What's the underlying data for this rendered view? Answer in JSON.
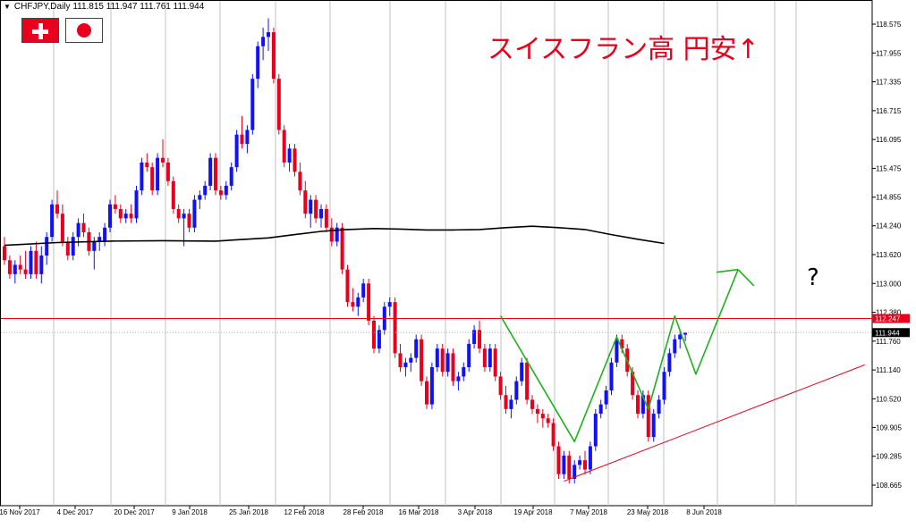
{
  "header": {
    "arrow": "▼",
    "symbol": "CHFJPY,Daily",
    "ohlc": "111.815 111.947 111.761 111.944"
  },
  "flags": [
    {
      "name": "Switzerland",
      "icon": "swiss-flag-icon"
    },
    {
      "name": "Japan",
      "icon": "japan-flag-icon"
    }
  ],
  "annotation_title": "スイスフラン高 円安↑",
  "annotation_question": "?",
  "colors": {
    "bull": "#1010ff",
    "bear": "#e8001c",
    "ma": "#000000",
    "pattern": "#20b020",
    "level": "#e8001c",
    "grid": "#c0c0c0"
  },
  "chart_data": {
    "type": "candlestick",
    "symbol": "CHFJPY",
    "timeframe": "Daily",
    "y_ticks": [
      "118.575",
      "117.955",
      "117.335",
      "116.715",
      "116.095",
      "115.475",
      "114.855",
      "114.240",
      "113.620",
      "113.000",
      "112.380",
      "111.760",
      "111.140",
      "110.520",
      "109.905",
      "109.285",
      "108.665"
    ],
    "x_ticks": [
      "16 Nov 2017",
      "4 Dec 2017",
      "20 Dec 2017",
      "9 Jan 2018",
      "25 Jan 2018",
      "12 Feb 2018",
      "28 Feb 2018",
      "16 Mar 2018",
      "3 Apr 2018",
      "19 Apr 2018",
      "7 May 2018",
      "23 May 2018",
      "8 Jun 2018"
    ],
    "ylim": [
      108.4,
      118.9
    ],
    "horizontal_line": {
      "value": 112.247,
      "label": "112.247"
    },
    "current_price": {
      "value": 111.944,
      "label": "111.944"
    },
    "moving_average": [
      [
        0,
        113.82
      ],
      [
        10,
        113.88
      ],
      [
        20,
        113.91
      ],
      [
        30,
        113.92
      ],
      [
        40,
        113.91
      ],
      [
        50,
        113.98
      ],
      [
        55,
        114.05
      ],
      [
        60,
        114.12
      ],
      [
        65,
        114.16
      ],
      [
        70,
        114.18
      ],
      [
        75,
        114.17
      ],
      [
        80,
        114.15
      ],
      [
        85,
        114.15
      ],
      [
        90,
        114.16
      ],
      [
        95,
        114.2
      ],
      [
        100,
        114.23
      ],
      [
        105,
        114.2
      ],
      [
        110,
        114.16
      ],
      [
        115,
        114.05
      ],
      [
        120,
        113.95
      ],
      [
        125,
        113.86
      ]
    ],
    "pattern_line": [
      [
        94,
        112.3
      ],
      [
        108,
        109.6
      ],
      [
        116,
        111.85
      ],
      [
        122,
        110.3
      ],
      [
        127,
        112.3
      ],
      [
        131,
        111.05
      ],
      [
        139,
        113.3
      ],
      [
        142,
        112.95
      ]
    ],
    "trend_line": [
      [
        106,
        108.75
      ],
      [
        163,
        111.25
      ]
    ],
    "candles": [
      [
        0,
        113.8,
        114.0,
        113.4,
        113.5
      ],
      [
        1,
        113.5,
        113.6,
        113.1,
        113.2
      ],
      [
        2,
        113.2,
        113.5,
        113.0,
        113.4
      ],
      [
        3,
        113.4,
        113.6,
        113.2,
        113.3
      ],
      [
        4,
        113.3,
        113.7,
        113.1,
        113.2
      ],
      [
        5,
        113.2,
        113.8,
        113.1,
        113.7
      ],
      [
        6,
        113.7,
        113.9,
        113.1,
        113.2
      ],
      [
        7,
        113.2,
        113.8,
        113.0,
        113.6
      ],
      [
        8,
        113.6,
        114.1,
        113.4,
        114.0
      ],
      [
        9,
        114.0,
        114.8,
        113.9,
        114.7
      ],
      [
        10,
        114.7,
        115.0,
        114.4,
        114.5
      ],
      [
        11,
        114.5,
        114.7,
        113.8,
        113.9
      ],
      [
        12,
        113.9,
        114.0,
        113.5,
        113.6
      ],
      [
        13,
        113.6,
        114.1,
        113.5,
        114.0
      ],
      [
        14,
        114.0,
        114.4,
        113.8,
        114.3
      ],
      [
        15,
        114.3,
        114.5,
        114.0,
        114.1
      ],
      [
        16,
        114.1,
        114.2,
        113.6,
        113.7
      ],
      [
        17,
        113.7,
        114.0,
        113.3,
        113.9
      ],
      [
        18,
        113.9,
        114.1,
        113.7,
        114.0
      ],
      [
        19,
        113.9,
        114.3,
        113.8,
        114.2
      ],
      [
        20,
        114.2,
        114.8,
        114.1,
        114.7
      ],
      [
        21,
        114.7,
        114.9,
        114.5,
        114.6
      ],
      [
        22,
        114.6,
        114.7,
        114.3,
        114.4
      ],
      [
        23,
        114.4,
        114.6,
        114.3,
        114.5
      ],
      [
        24,
        114.5,
        114.7,
        114.3,
        114.4
      ],
      [
        25,
        114.4,
        115.1,
        114.3,
        115.0
      ],
      [
        26,
        115.0,
        115.7,
        114.9,
        115.6
      ],
      [
        27,
        115.6,
        115.8,
        115.4,
        115.5
      ],
      [
        28,
        115.5,
        115.6,
        114.9,
        115.0
      ],
      [
        29,
        115.0,
        115.8,
        114.9,
        115.7
      ],
      [
        30,
        115.7,
        116.1,
        115.5,
        115.6
      ],
      [
        31,
        115.6,
        115.7,
        115.1,
        115.2
      ],
      [
        32,
        115.2,
        115.3,
        114.5,
        114.6
      ],
      [
        33,
        114.6,
        114.7,
        114.3,
        114.4
      ],
      [
        34,
        114.4,
        114.6,
        113.8,
        114.5
      ],
      [
        35,
        114.5,
        114.6,
        114.1,
        114.2
      ],
      [
        36,
        114.2,
        114.9,
        114.1,
        114.8
      ],
      [
        37,
        114.8,
        115.0,
        114.6,
        114.9
      ],
      [
        38,
        114.9,
        115.2,
        114.8,
        115.1
      ],
      [
        39,
        115.1,
        115.8,
        115.0,
        115.7
      ],
      [
        40,
        115.7,
        115.8,
        114.9,
        115.0
      ],
      [
        41,
        115.0,
        115.1,
        114.8,
        114.9
      ],
      [
        42,
        114.9,
        115.2,
        114.8,
        115.1
      ],
      [
        43,
        115.1,
        115.6,
        115.0,
        115.5
      ],
      [
        44,
        115.5,
        116.3,
        115.4,
        116.2
      ],
      [
        45,
        116.2,
        116.6,
        115.9,
        116.0
      ],
      [
        46,
        116.0,
        116.4,
        115.8,
        116.3
      ],
      [
        47,
        116.3,
        117.5,
        116.2,
        117.4
      ],
      [
        48,
        117.4,
        118.2,
        117.2,
        118.1
      ],
      [
        49,
        118.1,
        118.5,
        117.8,
        118.3
      ],
      [
        50,
        118.3,
        118.7,
        118.0,
        118.4
      ],
      [
        51,
        118.4,
        118.5,
        117.3,
        117.4
      ],
      [
        52,
        117.4,
        117.5,
        116.2,
        116.3
      ],
      [
        53,
        116.3,
        116.4,
        115.5,
        115.6
      ],
      [
        54,
        115.6,
        116.0,
        115.4,
        115.9
      ],
      [
        55,
        115.9,
        116.0,
        115.3,
        115.4
      ],
      [
        56,
        115.4,
        115.6,
        114.9,
        115.0
      ],
      [
        57,
        115.0,
        115.2,
        114.4,
        114.5
      ],
      [
        58,
        114.5,
        114.9,
        114.2,
        114.8
      ],
      [
        59,
        114.8,
        114.9,
        114.3,
        114.4
      ],
      [
        60,
        114.4,
        114.7,
        114.2,
        114.6
      ],
      [
        61,
        114.6,
        114.7,
        114.1,
        114.2
      ],
      [
        62,
        114.2,
        114.4,
        113.8,
        113.9
      ],
      [
        63,
        113.9,
        114.3,
        113.8,
        114.2
      ],
      [
        64,
        114.2,
        114.3,
        113.2,
        113.3
      ],
      [
        65,
        113.3,
        113.4,
        112.5,
        112.6
      ],
      [
        66,
        112.6,
        112.9,
        112.4,
        112.5
      ],
      [
        67,
        112.5,
        112.8,
        112.3,
        112.7
      ],
      [
        68,
        112.7,
        113.1,
        112.6,
        113.0
      ],
      [
        69,
        113.0,
        113.1,
        112.1,
        112.2
      ],
      [
        70,
        112.2,
        112.3,
        111.5,
        111.6
      ],
      [
        71,
        111.6,
        112.1,
        111.5,
        112.0
      ],
      [
        72,
        112.0,
        112.6,
        111.9,
        112.5
      ],
      [
        73,
        112.5,
        112.7,
        112.3,
        112.6
      ],
      [
        74,
        112.6,
        112.7,
        111.4,
        111.5
      ],
      [
        75,
        111.5,
        111.7,
        111.1,
        111.2
      ],
      [
        76,
        111.2,
        111.4,
        111.0,
        111.3
      ],
      [
        77,
        111.3,
        111.5,
        111.1,
        111.4
      ],
      [
        78,
        111.4,
        111.9,
        111.3,
        111.8
      ],
      [
        79,
        111.8,
        111.9,
        110.8,
        110.9
      ],
      [
        80,
        110.9,
        111.0,
        110.3,
        110.4
      ],
      [
        81,
        110.4,
        111.3,
        110.3,
        111.2
      ],
      [
        82,
        111.2,
        111.7,
        111.1,
        111.6
      ],
      [
        83,
        111.6,
        111.7,
        111.0,
        111.1
      ],
      [
        84,
        111.1,
        111.6,
        111.0,
        111.5
      ],
      [
        85,
        111.5,
        111.6,
        110.8,
        110.9
      ],
      [
        86,
        110.9,
        111.1,
        110.7,
        111.0
      ],
      [
        87,
        111.0,
        111.3,
        110.9,
        111.2
      ],
      [
        88,
        111.2,
        111.8,
        111.1,
        111.7
      ],
      [
        89,
        111.7,
        112.1,
        111.6,
        112.0
      ],
      [
        90,
        112.0,
        112.2,
        111.5,
        111.6
      ],
      [
        91,
        111.6,
        111.7,
        111.1,
        111.2
      ],
      [
        92,
        111.2,
        111.7,
        111.1,
        111.6
      ],
      [
        93,
        111.6,
        111.7,
        110.9,
        111.0
      ],
      [
        94,
        111.0,
        111.1,
        110.5,
        110.6
      ],
      [
        95,
        110.6,
        110.8,
        110.2,
        110.3
      ],
      [
        96,
        110.3,
        110.6,
        110.1,
        110.5
      ],
      [
        97,
        110.5,
        111.0,
        110.4,
        110.9
      ],
      [
        98,
        110.9,
        111.4,
        110.8,
        111.3
      ],
      [
        99,
        111.3,
        111.4,
        110.4,
        110.5
      ],
      [
        100,
        110.5,
        110.6,
        110.2,
        110.3
      ],
      [
        101,
        110.3,
        110.4,
        110.0,
        110.2
      ],
      [
        102,
        110.2,
        110.3,
        109.9,
        110.1
      ],
      [
        103,
        110.1,
        110.2,
        109.9,
        110.0
      ],
      [
        104,
        110.0,
        110.1,
        109.4,
        109.5
      ],
      [
        105,
        109.5,
        109.6,
        108.8,
        108.9
      ],
      [
        106,
        108.9,
        109.4,
        108.8,
        109.3
      ],
      [
        107,
        109.3,
        109.4,
        108.7,
        108.8
      ],
      [
        108,
        108.8,
        109.2,
        108.7,
        109.1
      ],
      [
        109,
        109.1,
        109.3,
        109.0,
        109.2
      ],
      [
        110,
        109.2,
        109.4,
        108.9,
        109.0
      ],
      [
        111,
        109.0,
        109.6,
        108.9,
        109.5
      ],
      [
        112,
        109.5,
        110.3,
        109.4,
        110.2
      ],
      [
        113,
        110.2,
        110.5,
        110.1,
        110.4
      ],
      [
        114,
        110.4,
        110.8,
        110.3,
        110.7
      ],
      [
        115,
        110.7,
        111.4,
        110.6,
        111.3
      ],
      [
        116,
        111.3,
        111.9,
        111.2,
        111.8
      ],
      [
        117,
        111.8,
        111.9,
        111.5,
        111.6
      ],
      [
        118,
        111.6,
        111.7,
        111.0,
        111.1
      ],
      [
        119,
        111.1,
        111.2,
        110.5,
        110.6
      ],
      [
        120,
        110.6,
        110.7,
        110.1,
        110.2
      ],
      [
        121,
        110.2,
        110.7,
        110.1,
        110.6
      ],
      [
        122,
        110.6,
        110.7,
        109.6,
        109.7
      ],
      [
        123,
        109.7,
        110.3,
        109.6,
        110.2
      ],
      [
        124,
        110.2,
        110.6,
        110.1,
        110.5
      ],
      [
        125,
        110.5,
        111.2,
        110.4,
        111.1
      ],
      [
        126,
        111.1,
        111.6,
        111.0,
        111.5
      ],
      [
        127,
        111.5,
        111.9,
        111.4,
        111.8
      ],
      [
        128,
        111.8,
        112.0,
        111.6,
        111.9
      ],
      [
        129,
        111.9,
        111.95,
        111.76,
        111.94
      ]
    ]
  }
}
